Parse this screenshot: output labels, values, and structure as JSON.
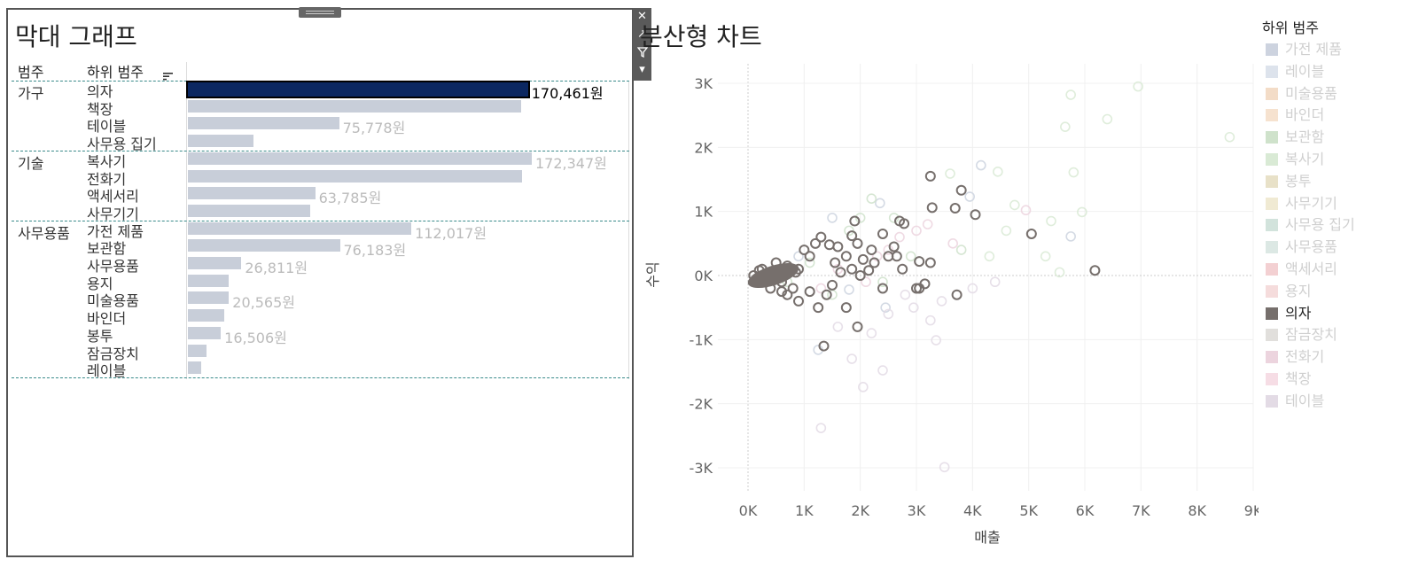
{
  "bar_sheet": {
    "title": "막대 그래프",
    "header_category": "범주",
    "header_subcategory": "하위 범주",
    "header_sort_icon": "sort-descending-icon",
    "rows": [
      {
        "category": "가구",
        "subcategory": "의자",
        "value": 170461,
        "label": "170,461원",
        "selected": true
      },
      {
        "category": "",
        "subcategory": "책장",
        "value": 167000,
        "label": "",
        "selected": false
      },
      {
        "category": "",
        "subcategory": "테이블",
        "value": 75778,
        "label": "75,778원",
        "selected": false
      },
      {
        "category": "",
        "subcategory": "사무용 집기",
        "value": 33000,
        "label": "",
        "selected": false
      },
      {
        "category": "기술",
        "subcategory": "복사기",
        "value": 172347,
        "label": "172,347원",
        "selected": false
      },
      {
        "category": "",
        "subcategory": "전화기",
        "value": 167500,
        "label": "",
        "selected": false
      },
      {
        "category": "",
        "subcategory": "액세서리",
        "value": 63785,
        "label": "63,785원",
        "selected": false
      },
      {
        "category": "",
        "subcategory": "사무기기",
        "value": 61500,
        "label": "",
        "selected": false
      },
      {
        "category": "사무용품",
        "subcategory": "가전 제품",
        "value": 112017,
        "label": "112,017원",
        "selected": false
      },
      {
        "category": "",
        "subcategory": "보관함",
        "value": 76183,
        "label": "76,183원",
        "selected": false
      },
      {
        "category": "",
        "subcategory": "사무용품",
        "value": 26811,
        "label": "26,811원",
        "selected": false
      },
      {
        "category": "",
        "subcategory": "용지",
        "value": 20500,
        "label": "",
        "selected": false
      },
      {
        "category": "",
        "subcategory": "미술용품",
        "value": 20565,
        "label": "20,565원",
        "selected": false
      },
      {
        "category": "",
        "subcategory": "바인더",
        "value": 18000,
        "label": "",
        "selected": false
      },
      {
        "category": "",
        "subcategory": "봉투",
        "value": 16506,
        "label": "16,506원",
        "selected": false
      },
      {
        "category": "",
        "subcategory": "잠금장치",
        "value": 9500,
        "label": "",
        "selected": false
      },
      {
        "category": "",
        "subcategory": "레이블",
        "value": 6500,
        "label": "",
        "selected": false
      }
    ],
    "colors": {
      "bar": "#c8ced9",
      "selected_bar": "#0b2761"
    }
  },
  "toolbar": {
    "close_icon": "close-icon",
    "popout_icon": "external-link-icon",
    "filter_icon": "filter-icon",
    "more_icon": "dropdown-arrow-icon"
  },
  "scatter_sheet": {
    "title": "분산형 차트",
    "xlabel": "매출",
    "ylabel": "수익",
    "x_ticks": [
      "0K",
      "1K",
      "2K",
      "3K",
      "4K",
      "5K",
      "6K",
      "7K",
      "8K",
      "9K"
    ],
    "y_ticks": [
      "3K",
      "2K",
      "1K",
      "0K",
      "-1K",
      "-2K",
      "-3K"
    ],
    "legend": {
      "title": "하위 범주",
      "items": [
        {
          "label": "가전 제품",
          "color": "#cdd3df",
          "active": false
        },
        {
          "label": "레이블",
          "color": "#dde3ec",
          "active": false
        },
        {
          "label": "미술용품",
          "color": "#f3dcc7",
          "active": false
        },
        {
          "label": "바인더",
          "color": "#f6e2cf",
          "active": false
        },
        {
          "label": "보관함",
          "color": "#cfe2cb",
          "active": false
        },
        {
          "label": "복사기",
          "color": "#d9ead5",
          "active": false
        },
        {
          "label": "봉투",
          "color": "#e8e1c8",
          "active": false
        },
        {
          "label": "사무기기",
          "color": "#f0ead3",
          "active": false
        },
        {
          "label": "사무용 집기",
          "color": "#d2e3dc",
          "active": false
        },
        {
          "label": "사무용품",
          "color": "#dce8e4",
          "active": false
        },
        {
          "label": "액세서리",
          "color": "#f3d0d2",
          "active": false
        },
        {
          "label": "용지",
          "color": "#f5dcdc",
          "active": false
        },
        {
          "label": "의자",
          "color": "#766f6c",
          "active": true
        },
        {
          "label": "잠금장치",
          "color": "#e1dfdc",
          "active": false
        },
        {
          "label": "전화기",
          "color": "#ecd4de",
          "active": false
        },
        {
          "label": "책장",
          "color": "#f6dde5",
          "active": false
        },
        {
          "label": "테이블",
          "color": "#e3dbe5",
          "active": false
        }
      ]
    }
  },
  "chart_data": {
    "type": "scatter",
    "title": "분산형 차트",
    "xlabel": "매출",
    "ylabel": "수익",
    "xlim": [
      0,
      9000
    ],
    "ylim": [
      -3300,
      3200
    ],
    "grid": true,
    "legend_position": "right",
    "series": [
      {
        "name": "의자",
        "points": [
          [
            3250,
            1550
          ],
          [
            3280,
            1060
          ],
          [
            3800,
            1330
          ],
          [
            3690,
            1050
          ],
          [
            4050,
            950
          ],
          [
            5050,
            650
          ],
          [
            6180,
            80
          ],
          [
            3720,
            -300
          ],
          [
            1350,
            -1100
          ],
          [
            1950,
            -800
          ],
          [
            3150,
            -130
          ],
          [
            3050,
            -200
          ],
          [
            3250,
            200
          ],
          [
            3050,
            220
          ],
          [
            2780,
            810
          ],
          [
            2700,
            850
          ],
          [
            2750,
            100
          ],
          [
            1900,
            850
          ],
          [
            2050,
            250
          ],
          [
            2200,
            400
          ],
          [
            2400,
            650
          ],
          [
            2500,
            300
          ],
          [
            2650,
            300
          ],
          [
            1750,
            -500
          ],
          [
            1950,
            500
          ],
          [
            1850,
            620
          ],
          [
            1600,
            450
          ],
          [
            1450,
            480
          ],
          [
            1300,
            600
          ],
          [
            1200,
            500
          ],
          [
            1100,
            300
          ],
          [
            1000,
            400
          ],
          [
            900,
            100
          ],
          [
            800,
            -200
          ],
          [
            700,
            -300
          ],
          [
            600,
            -100
          ],
          [
            500,
            200
          ],
          [
            400,
            0
          ],
          [
            300,
            -50
          ],
          [
            200,
            80
          ],
          [
            100,
            0
          ],
          [
            1400,
            -300
          ],
          [
            1500,
            -150
          ],
          [
            1650,
            50
          ],
          [
            2000,
            0
          ],
          [
            2150,
            80
          ],
          [
            1750,
            300
          ],
          [
            1550,
            200
          ],
          [
            900,
            -400
          ],
          [
            1100,
            -250
          ],
          [
            1250,
            -500
          ],
          [
            700,
            150
          ],
          [
            850,
            50
          ],
          [
            600,
            -250
          ],
          [
            400,
            -200
          ],
          [
            300,
            -100
          ],
          [
            500,
            50
          ],
          [
            250,
            100
          ],
          [
            150,
            -50
          ],
          [
            1850,
            100
          ],
          [
            2400,
            -200
          ],
          [
            2600,
            450
          ],
          [
            3000,
            -200
          ],
          [
            2250,
            200
          ]
        ]
      },
      {
        "name": "가전 제품",
        "points": [
          [
            4150,
            1720
          ],
          [
            3950,
            1230
          ],
          [
            5750,
            610
          ],
          [
            2350,
            1130
          ],
          [
            1500,
            900
          ],
          [
            1250,
            -1160
          ],
          [
            900,
            300
          ],
          [
            2450,
            -500
          ],
          [
            1800,
            -220
          ]
        ]
      },
      {
        "name": "복사기",
        "points": [
          [
            5750,
            2820
          ],
          [
            6950,
            2950
          ],
          [
            8580,
            2160
          ],
          [
            6400,
            2440
          ],
          [
            5650,
            2320
          ],
          [
            5800,
            1610
          ],
          [
            4450,
            1620
          ],
          [
            5950,
            990
          ],
          [
            5400,
            850
          ],
          [
            4750,
            1100
          ],
          [
            5300,
            300
          ],
          [
            5550,
            50
          ],
          [
            3600,
            1590
          ],
          [
            4300,
            300
          ],
          [
            4600,
            700
          ]
        ]
      },
      {
        "name": "테이블",
        "points": [
          [
            3500,
            -2990
          ],
          [
            1300,
            -2380
          ],
          [
            2050,
            -1740
          ],
          [
            2400,
            -1480
          ],
          [
            1850,
            -1300
          ],
          [
            3350,
            -1010
          ],
          [
            2200,
            -900
          ],
          [
            3250,
            -700
          ],
          [
            2800,
            -300
          ],
          [
            2500,
            -600
          ],
          [
            1600,
            -800
          ],
          [
            4000,
            -200
          ],
          [
            4400,
            -100
          ],
          [
            3450,
            -400
          ],
          [
            2950,
            -500
          ]
        ]
      },
      {
        "name": "전화기",
        "points": [
          [
            4950,
            1020
          ],
          [
            3200,
            800
          ],
          [
            3000,
            700
          ],
          [
            2700,
            600
          ],
          [
            2500,
            400
          ],
          [
            2300,
            300
          ],
          [
            1600,
            100
          ],
          [
            1300,
            -200
          ],
          [
            2100,
            -100
          ],
          [
            3650,
            500
          ]
        ]
      },
      {
        "name": "보관함",
        "points": [
          [
            2200,
            1200
          ],
          [
            2000,
            900
          ],
          [
            2600,
            900
          ],
          [
            1800,
            700
          ],
          [
            2900,
            300
          ],
          [
            1100,
            200
          ],
          [
            700,
            -100
          ],
          [
            2400,
            -100
          ],
          [
            1500,
            -300
          ],
          [
            3800,
            400
          ]
        ]
      }
    ]
  }
}
